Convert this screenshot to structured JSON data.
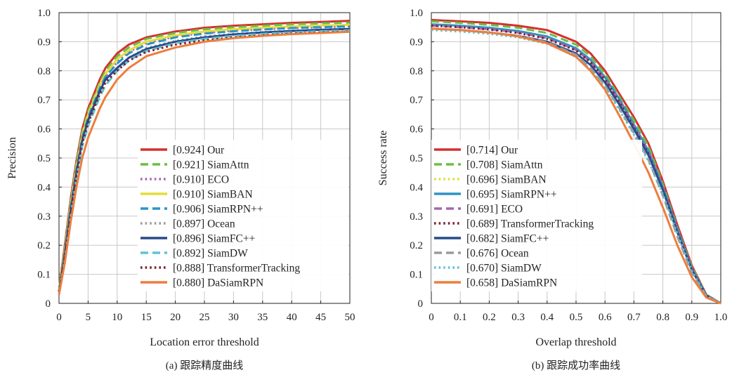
{
  "colors": {
    "Our": "#d62f2f",
    "SiamAttn": "#6cbd45",
    "ECO": "#a566b0",
    "SiamBAN": "#e3dd3a",
    "SiamRPN++": "#2c94c6",
    "Ocean": "#9b9b9b",
    "SiamFC++": "#274a8c",
    "SiamDW": "#5ec3cf",
    "TransformerTracking": "#7d1e2e",
    "DaSiamRPN": "#ee7d3c"
  },
  "chart_data": [
    {
      "type": "line",
      "caption": "(a) 跟踪精度曲线",
      "xlabel": "Location error threshold",
      "ylabel": "Precision",
      "xlim": [
        0,
        50
      ],
      "ylim": [
        0,
        1.0
      ],
      "xticks": [
        "0",
        "5",
        "10",
        "15",
        "20",
        "25",
        "30",
        "35",
        "40",
        "45",
        "50"
      ],
      "yticks": [
        "0",
        "0.1",
        "0.2",
        "0.3",
        "0.4",
        "0.5",
        "0.6",
        "0.7",
        "0.8",
        "0.9",
        "1.0"
      ],
      "grid": true,
      "legend_position": "bottom-right",
      "series": [
        {
          "name": "[0.924] Our",
          "tracker": "Our",
          "style": "solid",
          "x": [
            0,
            1,
            2,
            3,
            4,
            5,
            6,
            7,
            8,
            10,
            12,
            15,
            20,
            25,
            30,
            35,
            40,
            45,
            50
          ],
          "y": [
            0.05,
            0.2,
            0.36,
            0.49,
            0.6,
            0.67,
            0.72,
            0.77,
            0.81,
            0.86,
            0.89,
            0.915,
            0.935,
            0.948,
            0.955,
            0.96,
            0.965,
            0.968,
            0.972
          ]
        },
        {
          "name": "[0.921] SiamAttn",
          "tracker": "SiamAttn",
          "style": "dashed",
          "x": [
            0,
            1,
            2,
            3,
            4,
            5,
            6,
            7,
            8,
            10,
            12,
            15,
            20,
            25,
            30,
            35,
            40,
            45,
            50
          ],
          "y": [
            0.05,
            0.19,
            0.35,
            0.48,
            0.59,
            0.66,
            0.71,
            0.76,
            0.8,
            0.85,
            0.88,
            0.91,
            0.93,
            0.943,
            0.95,
            0.955,
            0.96,
            0.963,
            0.966
          ]
        },
        {
          "name": "[0.910] ECO",
          "tracker": "ECO",
          "style": "dotted",
          "x": [
            0,
            1,
            2,
            3,
            4,
            5,
            6,
            7,
            8,
            10,
            12,
            15,
            20,
            25,
            30,
            35,
            40,
            45,
            50
          ],
          "y": [
            0.04,
            0.17,
            0.33,
            0.46,
            0.57,
            0.64,
            0.69,
            0.74,
            0.78,
            0.83,
            0.865,
            0.895,
            0.918,
            0.93,
            0.938,
            0.943,
            0.947,
            0.95,
            0.953
          ]
        },
        {
          "name": "[0.910] SiamBAN",
          "tracker": "SiamBAN",
          "style": "solid",
          "x": [
            0,
            1,
            2,
            3,
            4,
            5,
            6,
            7,
            8,
            10,
            12,
            15,
            20,
            25,
            30,
            35,
            40,
            45,
            50
          ],
          "y": [
            0.05,
            0.18,
            0.34,
            0.47,
            0.58,
            0.65,
            0.7,
            0.75,
            0.79,
            0.84,
            0.87,
            0.9,
            0.922,
            0.935,
            0.943,
            0.948,
            0.952,
            0.955,
            0.958
          ]
        },
        {
          "name": "[0.906] SiamRPN++",
          "tracker": "SiamRPN++",
          "style": "dashed",
          "x": [
            0,
            1,
            2,
            3,
            4,
            5,
            6,
            7,
            8,
            10,
            12,
            15,
            20,
            25,
            30,
            35,
            40,
            45,
            50
          ],
          "y": [
            0.04,
            0.17,
            0.33,
            0.46,
            0.57,
            0.64,
            0.69,
            0.74,
            0.78,
            0.825,
            0.86,
            0.89,
            0.915,
            0.928,
            0.936,
            0.942,
            0.947,
            0.95,
            0.953
          ]
        },
        {
          "name": "[0.897] Ocean",
          "tracker": "Ocean",
          "style": "dotted",
          "x": [
            0,
            1,
            2,
            3,
            4,
            5,
            6,
            7,
            8,
            10,
            12,
            15,
            20,
            25,
            30,
            35,
            40,
            45,
            50
          ],
          "y": [
            0.04,
            0.16,
            0.31,
            0.44,
            0.55,
            0.62,
            0.67,
            0.72,
            0.76,
            0.81,
            0.845,
            0.878,
            0.903,
            0.918,
            0.927,
            0.933,
            0.938,
            0.942,
            0.945
          ]
        },
        {
          "name": "[0.896] SiamFC++",
          "tracker": "SiamFC++",
          "style": "solid",
          "x": [
            0,
            1,
            2,
            3,
            4,
            5,
            6,
            7,
            8,
            10,
            12,
            15,
            20,
            25,
            30,
            35,
            40,
            45,
            50
          ],
          "y": [
            0.04,
            0.17,
            0.32,
            0.45,
            0.56,
            0.63,
            0.68,
            0.73,
            0.77,
            0.81,
            0.845,
            0.875,
            0.9,
            0.915,
            0.925,
            0.932,
            0.937,
            0.941,
            0.944
          ]
        },
        {
          "name": "[0.892] SiamDW",
          "tracker": "SiamDW",
          "style": "dashed",
          "x": [
            0,
            1,
            2,
            3,
            4,
            5,
            6,
            7,
            8,
            10,
            12,
            15,
            20,
            25,
            30,
            35,
            40,
            45,
            50
          ],
          "y": [
            0.04,
            0.15,
            0.3,
            0.43,
            0.54,
            0.61,
            0.66,
            0.71,
            0.75,
            0.8,
            0.835,
            0.868,
            0.895,
            0.91,
            0.92,
            0.927,
            0.932,
            0.936,
            0.939
          ]
        },
        {
          "name": "[0.888] TransformerTracking",
          "tracker": "TransformerTracking",
          "style": "dotted",
          "x": [
            0,
            1,
            2,
            3,
            4,
            5,
            6,
            7,
            8,
            10,
            12,
            15,
            20,
            25,
            30,
            35,
            40,
            45,
            50
          ],
          "y": [
            0.04,
            0.16,
            0.31,
            0.44,
            0.55,
            0.62,
            0.67,
            0.72,
            0.76,
            0.8,
            0.835,
            0.865,
            0.89,
            0.905,
            0.915,
            0.922,
            0.928,
            0.932,
            0.935
          ]
        },
        {
          "name": "[0.880] DaSiamRPN",
          "tracker": "DaSiamRPN",
          "style": "solid",
          "x": [
            0,
            1,
            2,
            3,
            4,
            5,
            6,
            7,
            8,
            10,
            12,
            15,
            20,
            25,
            30,
            35,
            40,
            45,
            50
          ],
          "y": [
            0.03,
            0.14,
            0.28,
            0.4,
            0.5,
            0.57,
            0.62,
            0.67,
            0.71,
            0.77,
            0.81,
            0.85,
            0.88,
            0.9,
            0.912,
            0.92,
            0.926,
            0.93,
            0.934
          ]
        }
      ]
    },
    {
      "type": "line",
      "caption": "(b) 跟踪成功率曲线",
      "xlabel": "Overlap threshold",
      "ylabel": "Success rate",
      "xlim": [
        0,
        1.0
      ],
      "ylim": [
        0,
        1.0
      ],
      "xticks": [
        "0",
        "0.1",
        "0.2",
        "0.3",
        "0.4",
        "0.5",
        "0.6",
        "0.7",
        "0.8",
        "0.9",
        "1.0"
      ],
      "yticks": [
        "0",
        "0.1",
        "0.2",
        "0.3",
        "0.4",
        "0.5",
        "0.6",
        "0.7",
        "0.8",
        "0.9",
        "1.0"
      ],
      "grid": true,
      "legend_position": "bottom-left",
      "series": [
        {
          "name": "[0.714] Our",
          "tracker": "Our",
          "style": "solid",
          "x": [
            0,
            0.1,
            0.2,
            0.3,
            0.4,
            0.5,
            0.55,
            0.6,
            0.65,
            0.7,
            0.75,
            0.8,
            0.85,
            0.9,
            0.95,
            1.0
          ],
          "y": [
            0.975,
            0.97,
            0.965,
            0.955,
            0.94,
            0.9,
            0.86,
            0.8,
            0.72,
            0.64,
            0.55,
            0.42,
            0.27,
            0.13,
            0.03,
            0.0
          ]
        },
        {
          "name": "[0.708] SiamAttn",
          "tracker": "SiamAttn",
          "style": "dashed",
          "x": [
            0,
            0.1,
            0.2,
            0.3,
            0.4,
            0.5,
            0.55,
            0.6,
            0.65,
            0.7,
            0.75,
            0.8,
            0.85,
            0.9,
            0.95,
            1.0
          ],
          "y": [
            0.97,
            0.965,
            0.958,
            0.948,
            0.93,
            0.89,
            0.85,
            0.79,
            0.71,
            0.63,
            0.54,
            0.41,
            0.26,
            0.125,
            0.03,
            0.0
          ]
        },
        {
          "name": "[0.696] SiamBAN",
          "tracker": "SiamBAN",
          "style": "dotted",
          "x": [
            0,
            0.1,
            0.2,
            0.3,
            0.4,
            0.5,
            0.55,
            0.6,
            0.65,
            0.7,
            0.75,
            0.8,
            0.85,
            0.9,
            0.95,
            1.0
          ],
          "y": [
            0.96,
            0.955,
            0.947,
            0.935,
            0.915,
            0.875,
            0.835,
            0.775,
            0.7,
            0.615,
            0.525,
            0.4,
            0.255,
            0.12,
            0.028,
            0.0
          ]
        },
        {
          "name": "[0.695] SiamRPN++",
          "tracker": "SiamRPN++",
          "style": "solid",
          "x": [
            0,
            0.1,
            0.2,
            0.3,
            0.4,
            0.5,
            0.55,
            0.6,
            0.65,
            0.7,
            0.75,
            0.8,
            0.85,
            0.9,
            0.95,
            1.0
          ],
          "y": [
            0.96,
            0.955,
            0.948,
            0.937,
            0.918,
            0.878,
            0.838,
            0.778,
            0.702,
            0.615,
            0.525,
            0.4,
            0.255,
            0.12,
            0.028,
            0.0
          ]
        },
        {
          "name": "[0.691] ECO",
          "tracker": "ECO",
          "style": "dashed",
          "x": [
            0,
            0.1,
            0.2,
            0.3,
            0.4,
            0.5,
            0.55,
            0.6,
            0.65,
            0.7,
            0.75,
            0.8,
            0.85,
            0.9,
            0.95,
            1.0
          ],
          "y": [
            0.955,
            0.95,
            0.943,
            0.932,
            0.912,
            0.872,
            0.832,
            0.772,
            0.695,
            0.61,
            0.52,
            0.395,
            0.25,
            0.118,
            0.028,
            0.0
          ]
        },
        {
          "name": "[0.689] TransformerTracking",
          "tracker": "TransformerTracking",
          "style": "dotted",
          "x": [
            0,
            0.1,
            0.2,
            0.3,
            0.4,
            0.5,
            0.55,
            0.6,
            0.65,
            0.7,
            0.75,
            0.8,
            0.85,
            0.9,
            0.95,
            1.0
          ],
          "y": [
            0.955,
            0.95,
            0.942,
            0.93,
            0.91,
            0.87,
            0.83,
            0.77,
            0.692,
            0.605,
            0.515,
            0.39,
            0.245,
            0.115,
            0.027,
            0.0
          ]
        },
        {
          "name": "[0.682] SiamFC++",
          "tracker": "SiamFC++",
          "style": "solid",
          "x": [
            0,
            0.1,
            0.2,
            0.3,
            0.4,
            0.5,
            0.55,
            0.6,
            0.65,
            0.7,
            0.75,
            0.8,
            0.85,
            0.9,
            0.95,
            1.0
          ],
          "y": [
            0.945,
            0.94,
            0.932,
            0.92,
            0.9,
            0.86,
            0.82,
            0.76,
            0.683,
            0.6,
            0.51,
            0.39,
            0.245,
            0.115,
            0.027,
            0.0
          ]
        },
        {
          "name": "[0.676] Ocean",
          "tracker": "Ocean",
          "style": "dashed",
          "x": [
            0,
            0.1,
            0.2,
            0.3,
            0.4,
            0.5,
            0.55,
            0.6,
            0.65,
            0.7,
            0.75,
            0.8,
            0.85,
            0.9,
            0.95,
            1.0
          ],
          "y": [
            0.945,
            0.94,
            0.932,
            0.92,
            0.898,
            0.855,
            0.81,
            0.75,
            0.67,
            0.585,
            0.495,
            0.37,
            0.23,
            0.105,
            0.025,
            0.0
          ]
        },
        {
          "name": "[0.670] SiamDW",
          "tracker": "SiamDW",
          "style": "dotted",
          "x": [
            0,
            0.1,
            0.2,
            0.3,
            0.4,
            0.5,
            0.55,
            0.6,
            0.65,
            0.7,
            0.75,
            0.8,
            0.85,
            0.9,
            0.95,
            1.0
          ],
          "y": [
            0.94,
            0.935,
            0.927,
            0.915,
            0.893,
            0.85,
            0.805,
            0.745,
            0.665,
            0.58,
            0.49,
            0.375,
            0.24,
            0.112,
            0.026,
            0.0
          ]
        },
        {
          "name": "[0.658] DaSiamRPN",
          "tracker": "DaSiamRPN",
          "style": "solid",
          "x": [
            0,
            0.1,
            0.2,
            0.3,
            0.4,
            0.5,
            0.55,
            0.6,
            0.65,
            0.7,
            0.75,
            0.8,
            0.85,
            0.9,
            0.95,
            1.0
          ],
          "y": [
            0.945,
            0.94,
            0.932,
            0.918,
            0.895,
            0.848,
            0.8,
            0.735,
            0.645,
            0.55,
            0.45,
            0.33,
            0.2,
            0.09,
            0.02,
            0.0
          ]
        }
      ]
    }
  ]
}
